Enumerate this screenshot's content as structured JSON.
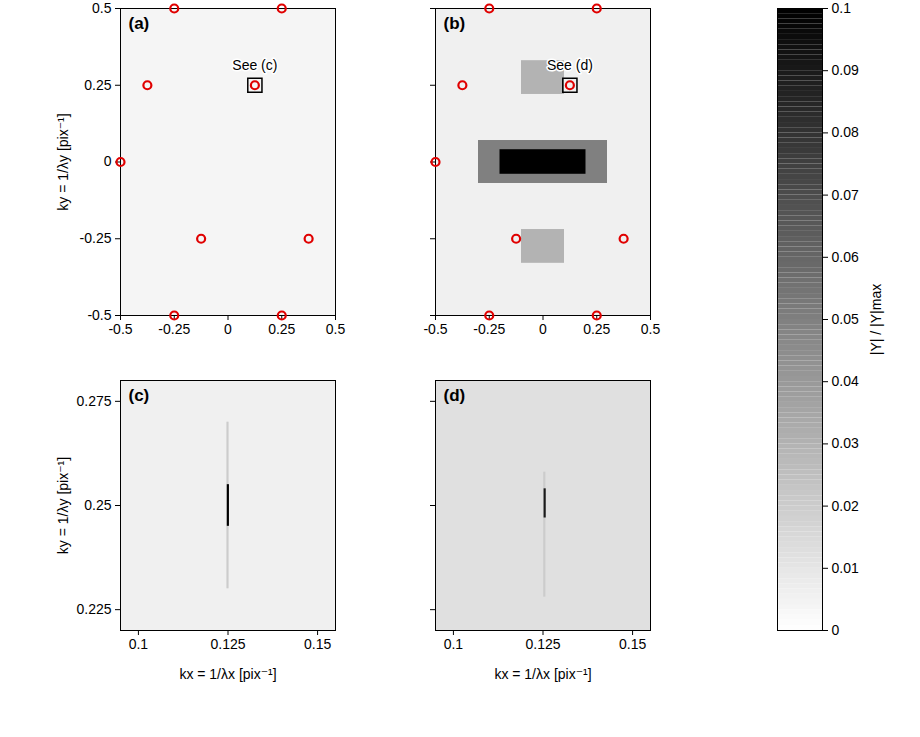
{
  "chart_data": [
    {
      "type": "heatmap",
      "panel": "(a)",
      "xlim": [
        -0.5,
        0.5
      ],
      "xticks": [
        -0.5,
        -0.25,
        0,
        0.25,
        0.5
      ],
      "ylim": [
        -0.5,
        0.5
      ],
      "yticks": [
        -0.5,
        -0.25,
        0,
        0.25,
        0.5
      ],
      "ylabel": "ky = 1/λy [pix⁻¹]",
      "cells": [
        {
          "x1": -0.5,
          "x2": 0.5,
          "y1": -0.5,
          "y2": 0.5,
          "value": 0.004
        }
      ],
      "markers": {
        "x": [
          -0.25,
          0.25,
          -0.375,
          0.125,
          -0.5,
          -0.125,
          0.375,
          -0.25,
          0.25
        ],
        "y": [
          0.5,
          0.5,
          0.25,
          0.25,
          0,
          -0.25,
          -0.25,
          -0.5,
          -0.5
        ],
        "color": "#e00000",
        "marker": "circle"
      },
      "annotation": {
        "text": "See (c)",
        "x": 0.125,
        "y": 0.25
      }
    },
    {
      "type": "heatmap",
      "panel": "(b)",
      "tick_labels": "x",
      "xlim": [
        -0.5,
        0.5
      ],
      "xticks": [
        -0.5,
        -0.25,
        0,
        0.25,
        0.5
      ],
      "ylim": [
        -0.5,
        0.5
      ],
      "yticks": [
        -0.5,
        -0.25,
        0,
        0.25,
        0.5
      ],
      "cells": [
        {
          "x1": -0.5,
          "x2": 0.5,
          "y1": -0.5,
          "y2": 0.5,
          "value": 0.006
        },
        {
          "x1": -0.1,
          "x2": 0.1,
          "y1": 0.22,
          "y2": 0.33,
          "value": 0.03
        },
        {
          "x1": -0.1,
          "x2": 0.1,
          "y1": -0.33,
          "y2": -0.22,
          "value": 0.03
        },
        {
          "x1": -0.3,
          "x2": 0.3,
          "y1": -0.07,
          "y2": 0.07,
          "value": 0.05
        },
        {
          "x1": -0.2,
          "x2": 0.2,
          "y1": -0.04,
          "y2": 0.04,
          "value": 0.1
        }
      ],
      "markers": {
        "x": [
          -0.25,
          0.25,
          -0.375,
          0.125,
          -0.5,
          -0.125,
          0.375,
          -0.25,
          0.25
        ],
        "y": [
          0.5,
          0.5,
          0.25,
          0.25,
          0,
          -0.25,
          -0.25,
          -0.5,
          -0.5
        ],
        "color": "#e00000",
        "marker": "circle"
      },
      "annotation": {
        "text": "See (d)",
        "x": 0.125,
        "y": 0.25
      }
    },
    {
      "type": "heatmap",
      "panel": "(c)",
      "xlim": [
        0.095,
        0.155
      ],
      "xticks": [
        0.1,
        0.125,
        0.15
      ],
      "ylim": [
        0.22,
        0.28
      ],
      "yticks": [
        0.225,
        0.25,
        0.275
      ],
      "xlabel": "kx = 1/λx [pix⁻¹]",
      "ylabel": "ky = 1/λy [pix⁻¹]",
      "cells": [
        {
          "x1": 0.095,
          "x2": 0.155,
          "y1": 0.22,
          "y2": 0.28,
          "value": 0.006
        },
        {
          "x1": 0.1247,
          "x2": 0.1253,
          "y1": 0.23,
          "y2": 0.27,
          "value": 0.02
        },
        {
          "x1": 0.1248,
          "x2": 0.1254,
          "y1": 0.245,
          "y2": 0.255,
          "value": 0.1
        }
      ]
    },
    {
      "type": "heatmap",
      "panel": "(d)",
      "tick_labels": "x",
      "xlim": [
        0.095,
        0.155
      ],
      "xticks": [
        0.1,
        0.125,
        0.15
      ],
      "ylim": [
        0.22,
        0.28
      ],
      "yticks": [
        0.225,
        0.25,
        0.275
      ],
      "xlabel": "kx = 1/λx [pix⁻¹]",
      "cells": [
        {
          "x1": 0.095,
          "x2": 0.155,
          "y1": 0.22,
          "y2": 0.28,
          "value": 0.012
        },
        {
          "x1": 0.1252,
          "x2": 0.1258,
          "y1": 0.228,
          "y2": 0.258,
          "value": 0.02
        },
        {
          "x1": 0.1253,
          "x2": 0.1259,
          "y1": 0.247,
          "y2": 0.254,
          "value": 0.09
        }
      ]
    },
    {
      "type": "colorbar",
      "ylim": [
        0,
        0.1
      ],
      "yticks": [
        0,
        0.01,
        0.02,
        0.03,
        0.04,
        0.05,
        0.06,
        0.07,
        0.08,
        0.09,
        0.1
      ],
      "ylabel": "|Y| / |Y|max"
    }
  ]
}
